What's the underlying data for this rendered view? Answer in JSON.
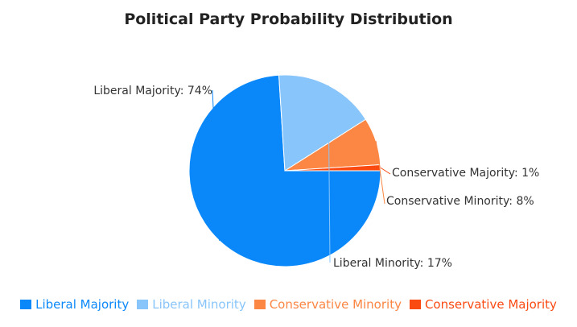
{
  "chart_data": {
    "type": "pie",
    "title": "Political Party Probability Distribution",
    "slices": [
      {
        "name": "Liberal Majority",
        "value": 74,
        "label": "Liberal Majority: 74%",
        "color": "#0a88fa"
      },
      {
        "name": "Liberal Minority",
        "value": 17,
        "label": "Liberal Minority: 17%",
        "color": "#88c5fb"
      },
      {
        "name": "Conservative Minority",
        "value": 8,
        "label": "Conservative Minority: 8%",
        "color": "#fc8644"
      },
      {
        "name": "Conservative Majority",
        "value": 1,
        "label": "Conservative Majority: 1%",
        "color": "#fa4a12"
      }
    ],
    "legend_placement": "bottom"
  }
}
